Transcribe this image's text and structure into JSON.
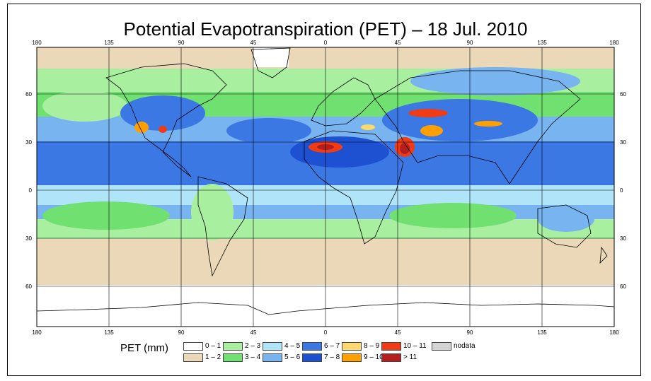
{
  "title": "Potential Evapotranspiration (PET) – 18 Jul. 2010",
  "axes": {
    "lon_top": [
      "180",
      "135",
      "90",
      "45",
      "0",
      "45",
      "90",
      "135",
      "180"
    ],
    "lon_bottom": [
      "180",
      "135",
      "90",
      "45",
      "0",
      "45",
      "90",
      "135",
      "180"
    ],
    "lat_left": [
      "60",
      "30",
      "0",
      "30",
      "60"
    ],
    "lat_right": [
      "60",
      "30",
      "0",
      "30",
      "60"
    ]
  },
  "legend": {
    "title": "PET (mm)",
    "classes": [
      {
        "label": "0 – 1",
        "color": "#ffffff"
      },
      {
        "label": "1 – 2",
        "color": "#ead8b8"
      },
      {
        "label": "2 – 3",
        "color": "#a8f0a0"
      },
      {
        "label": "3 – 4",
        "color": "#70e070"
      },
      {
        "label": "4 – 5",
        "color": "#b0e4f8"
      },
      {
        "label": "5 – 6",
        "color": "#78b4f0"
      },
      {
        "label": "6 – 7",
        "color": "#3c78e4"
      },
      {
        "label": "7 – 8",
        "color": "#1e50d2"
      },
      {
        "label": "8 – 9",
        "color": "#ffd870"
      },
      {
        "label": "9 – 10",
        "color": "#ffa000"
      },
      {
        "label": "10 – 11",
        "color": "#f03c14"
      },
      {
        "label": "> 11",
        "color": "#b41e1e"
      },
      {
        "label": "nodata",
        "color": "#d4d4d4"
      }
    ]
  }
}
